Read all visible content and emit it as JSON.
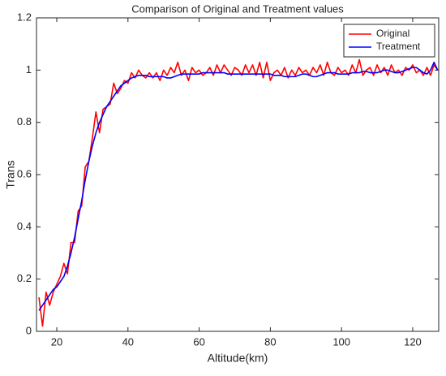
{
  "chart_data": {
    "type": "line",
    "title": "Comparison of Original and Treatment values",
    "x_label": "Altitude(km)",
    "y_label": "Trans",
    "x": [
      15,
      16,
      17,
      18,
      19,
      20,
      21,
      22,
      23,
      24,
      25,
      26,
      27,
      28,
      29,
      30,
      31,
      32,
      33,
      34,
      35,
      36,
      37,
      38,
      39,
      40,
      41,
      42,
      43,
      44,
      45,
      46,
      47,
      48,
      49,
      50,
      51,
      52,
      53,
      54,
      55,
      56,
      57,
      58,
      59,
      60,
      61,
      62,
      63,
      64,
      65,
      66,
      67,
      68,
      69,
      70,
      71,
      72,
      73,
      74,
      75,
      76,
      77,
      78,
      79,
      80,
      81,
      82,
      83,
      84,
      85,
      86,
      87,
      88,
      89,
      90,
      91,
      92,
      93,
      94,
      95,
      96,
      97,
      98,
      99,
      100,
      101,
      102,
      103,
      104,
      105,
      106,
      107,
      108,
      109,
      110,
      111,
      112,
      113,
      114,
      115,
      116,
      117,
      118,
      119,
      120,
      121,
      122,
      123,
      124,
      125,
      126,
      127
    ],
    "series": [
      {
        "name": "Original",
        "color": "#ff0000",
        "values": [
          0.13,
          0.02,
          0.15,
          0.1,
          0.15,
          0.18,
          0.21,
          0.26,
          0.22,
          0.34,
          0.34,
          0.46,
          0.48,
          0.63,
          0.65,
          0.74,
          0.84,
          0.76,
          0.85,
          0.86,
          0.87,
          0.95,
          0.91,
          0.93,
          0.96,
          0.95,
          0.99,
          0.97,
          1.0,
          0.98,
          0.97,
          0.99,
          0.97,
          0.99,
          0.96,
          1.0,
          0.98,
          1.01,
          0.99,
          1.03,
          0.98,
          1.0,
          0.96,
          1.01,
          0.99,
          1.0,
          0.98,
          0.99,
          1.01,
          0.98,
          1.02,
          0.99,
          1.02,
          1.0,
          0.98,
          1.01,
          1.0,
          0.98,
          1.02,
          0.99,
          1.02,
          0.98,
          1.03,
          0.97,
          1.03,
          0.96,
          0.99,
          1.0,
          0.98,
          1.01,
          0.97,
          1.0,
          0.98,
          1.01,
          0.99,
          1.0,
          0.98,
          1.01,
          0.99,
          1.02,
          0.98,
          1.03,
          0.99,
          0.98,
          1.01,
          0.99,
          1.0,
          0.98,
          1.02,
          0.99,
          1.04,
          0.98,
          1.0,
          1.01,
          0.98,
          1.02,
          0.99,
          1.01,
          0.98,
          1.02,
          0.99,
          1.0,
          0.98,
          1.01,
          1.0,
          1.02,
          0.99,
          1.0,
          0.98,
          1.01,
          0.98,
          1.02,
          1.0
        ]
      },
      {
        "name": "Treatment",
        "color": "#0000ff",
        "values": [
          0.08,
          0.1,
          0.12,
          0.14,
          0.16,
          0.17,
          0.19,
          0.21,
          0.25,
          0.3,
          0.36,
          0.43,
          0.5,
          0.58,
          0.65,
          0.71,
          0.76,
          0.8,
          0.83,
          0.86,
          0.88,
          0.9,
          0.92,
          0.94,
          0.95,
          0.96,
          0.97,
          0.975,
          0.98,
          0.98,
          0.98,
          0.975,
          0.975,
          0.975,
          0.975,
          0.975,
          0.97,
          0.97,
          0.975,
          0.98,
          0.985,
          0.985,
          0.985,
          0.985,
          0.985,
          0.985,
          0.99,
          0.99,
          0.99,
          0.99,
          0.99,
          0.99,
          0.99,
          0.985,
          0.985,
          0.985,
          0.985,
          0.985,
          0.985,
          0.985,
          0.985,
          0.985,
          0.985,
          0.985,
          0.985,
          0.985,
          0.98,
          0.98,
          0.98,
          0.975,
          0.975,
          0.975,
          0.975,
          0.98,
          0.985,
          0.985,
          0.98,
          0.975,
          0.975,
          0.98,
          0.985,
          0.99,
          0.99,
          0.99,
          0.985,
          0.985,
          0.985,
          0.985,
          0.99,
          0.99,
          0.99,
          0.995,
          0.995,
          0.99,
          0.99,
          0.99,
          0.995,
          1.0,
          1.0,
          0.995,
          0.99,
          0.99,
          0.995,
          1.0,
          1.005,
          1.01,
          1.01,
          1.0,
          0.99,
          0.985,
          1.0,
          1.03,
          1.0
        ]
      }
    ],
    "xlim": [
      14.3,
      127.3
    ],
    "xticks": [
      20,
      40,
      60,
      80,
      100,
      120
    ],
    "ylim": [
      0,
      1.2
    ],
    "yticks": [
      0,
      0.2,
      0.4,
      0.6,
      0.8,
      1,
      1.2
    ],
    "grid": false,
    "legend": "upper right"
  }
}
